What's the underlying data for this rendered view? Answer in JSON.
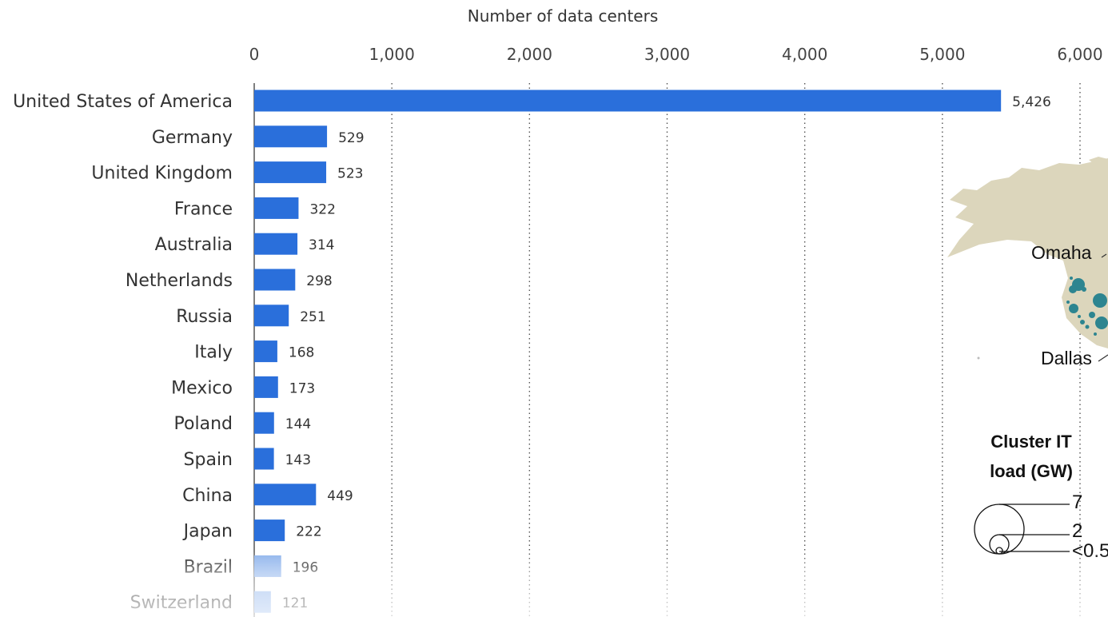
{
  "chart_data": {
    "type": "bar",
    "orientation": "horizontal",
    "xlabel": "Number of data centers",
    "xlim": [
      0,
      6000
    ],
    "xticks": [
      0,
      1000,
      2000,
      3000,
      4000,
      5000,
      6000
    ],
    "xtick_labels": [
      "0",
      "1,000",
      "2,000",
      "3,000",
      "4,000",
      "5,000",
      "6,000"
    ],
    "grid": "vertical dotted",
    "bar_color": "#2a6fdb",
    "categories": [
      "United States of America",
      "Germany",
      "United Kingdom",
      "France",
      "Australia",
      "Netherlands",
      "Russia",
      "Italy",
      "Mexico",
      "Poland",
      "Spain",
      "China",
      "Japan",
      "Brazil",
      "Switzerland"
    ],
    "values": [
      5426,
      529,
      523,
      322,
      314,
      298,
      251,
      168,
      173,
      144,
      143,
      449,
      222,
      196,
      121
    ],
    "value_labels": [
      "5,426",
      "529",
      "523",
      "322",
      "314",
      "298",
      "251",
      "168",
      "173",
      "144",
      "143",
      "449",
      "222",
      "196",
      "121"
    ]
  },
  "map_inset": {
    "land_color": "#dcd6bc",
    "dot_color": "#2d8590",
    "cities": [
      "Omaha",
      "Dallas"
    ],
    "legend": {
      "title_line1": "Cluster IT",
      "title_line2": "load (GW)",
      "values": [
        "7",
        "2",
        "<0.5"
      ]
    }
  }
}
